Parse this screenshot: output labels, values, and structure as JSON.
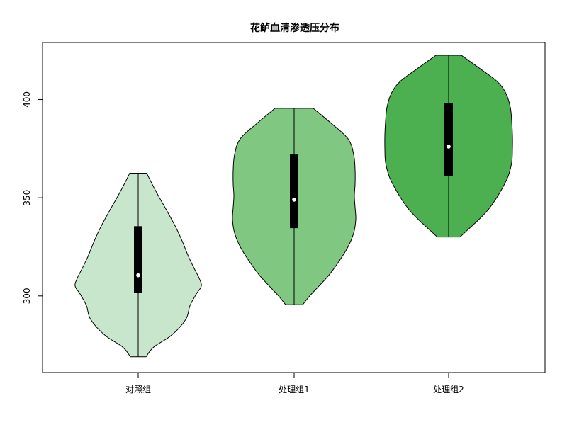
{
  "chart_data": {
    "type": "violin",
    "title": "花鲈血清渗透压分布",
    "xlabel": "",
    "ylabel": "",
    "categories": [
      "对照组",
      "处理组1",
      "处理组2"
    ],
    "y_ticks": [
      300,
      350,
      400
    ],
    "ylim": [
      261,
      429
    ],
    "grid": false,
    "legend": "none",
    "series": [
      {
        "category": "对照组",
        "color": "#c7e6cc",
        "min": 269,
        "q1": 301.5,
        "median": 310.5,
        "q3": 335.5,
        "max": 362.5,
        "density": [
          [
            269,
            0.11
          ],
          [
            274,
            0.22
          ],
          [
            280,
            0.47
          ],
          [
            288,
            0.67
          ],
          [
            295,
            0.73
          ],
          [
            301,
            0.82
          ],
          [
            305,
            0.89
          ],
          [
            309,
            0.86
          ],
          [
            314,
            0.79
          ],
          [
            320,
            0.71
          ],
          [
            328,
            0.62
          ],
          [
            335,
            0.53
          ],
          [
            343,
            0.41
          ],
          [
            350,
            0.3
          ],
          [
            356,
            0.21
          ],
          [
            362.5,
            0.12
          ]
        ]
      },
      {
        "category": "处理组1",
        "color": "#80c782",
        "min": 295.5,
        "q1": 334.5,
        "median": 349,
        "q3": 372,
        "max": 395.5,
        "density": [
          [
            295.5,
            0.12
          ],
          [
            300,
            0.22
          ],
          [
            305,
            0.35
          ],
          [
            311,
            0.5
          ],
          [
            318,
            0.64
          ],
          [
            325,
            0.76
          ],
          [
            332,
            0.84
          ],
          [
            339,
            0.87
          ],
          [
            345,
            0.86
          ],
          [
            351,
            0.85
          ],
          [
            357,
            0.86
          ],
          [
            364,
            0.86
          ],
          [
            372,
            0.84
          ],
          [
            380,
            0.76
          ],
          [
            388,
            0.52
          ],
          [
            395.5,
            0.27
          ]
        ]
      },
      {
        "category": "处理组2",
        "color": "#4caf50",
        "min": 330,
        "q1": 361,
        "median": 376,
        "q3": 398,
        "max": 422.5,
        "density": [
          [
            330,
            0.16
          ],
          [
            334,
            0.28
          ],
          [
            339,
            0.43
          ],
          [
            344,
            0.56
          ],
          [
            349,
            0.66
          ],
          [
            355,
            0.76
          ],
          [
            361,
            0.84
          ],
          [
            368,
            0.89
          ],
          [
            375,
            0.9
          ],
          [
            382,
            0.9
          ],
          [
            389,
            0.89
          ],
          [
            396,
            0.87
          ],
          [
            403,
            0.81
          ],
          [
            409,
            0.69
          ],
          [
            415,
            0.47
          ],
          [
            422.5,
            0.18
          ]
        ]
      }
    ]
  }
}
